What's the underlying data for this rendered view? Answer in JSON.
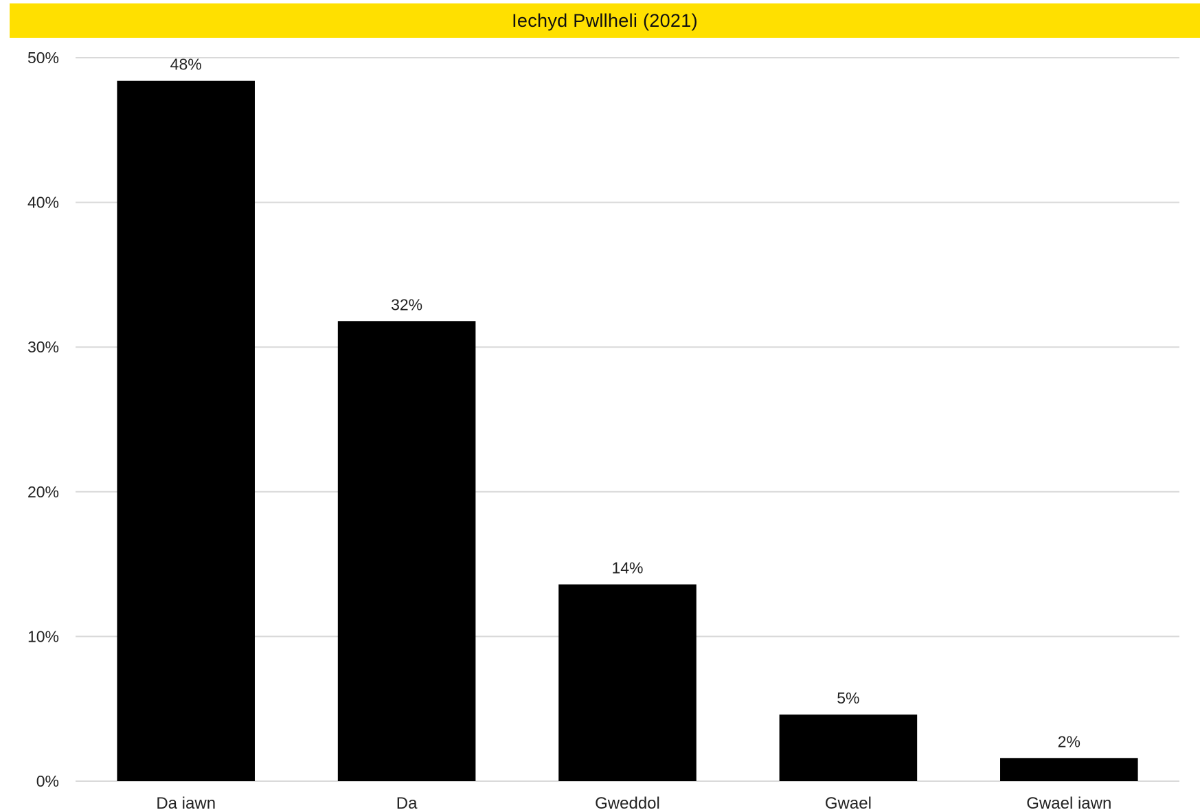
{
  "colors": {
    "title_bar": "#FFE000",
    "bar": "#000000",
    "grid": "#D9D9D9"
  },
  "chart_data": {
    "type": "bar",
    "title": "Iechyd Pwllheli (2021)",
    "categories": [
      "Da iawn",
      "Da",
      "Gweddol",
      "Gwael",
      "Gwael iawn"
    ],
    "values": [
      48.4,
      31.8,
      13.6,
      4.6,
      1.6
    ],
    "data_labels": [
      "48%",
      "32%",
      "14%",
      "5%",
      "2%"
    ],
    "ylim": [
      0,
      50
    ],
    "yticks": [
      0,
      10,
      20,
      30,
      40,
      50
    ],
    "ytick_labels": [
      "0%",
      "10%",
      "20%",
      "30%",
      "40%",
      "50%"
    ],
    "grid": true,
    "legend": "none"
  }
}
